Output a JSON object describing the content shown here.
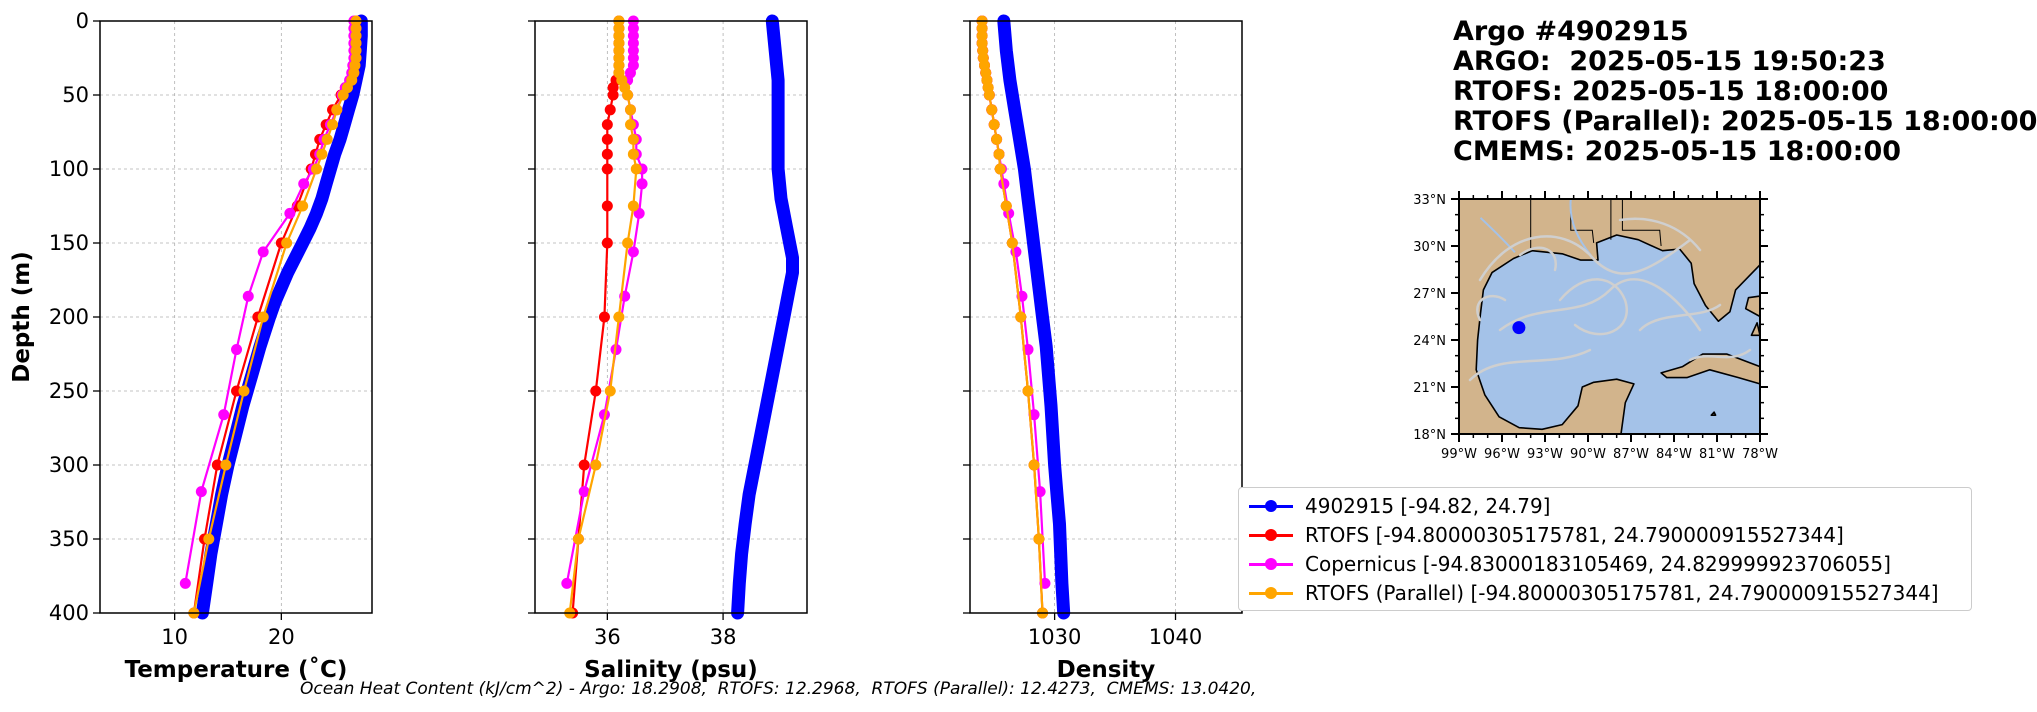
{
  "header": {
    "line1": "Argo #4902915",
    "line2": "ARGO:  2025-05-15 19:50:23",
    "line3": "RTOFS: 2025-05-15 18:00:00",
    "line4": "RTOFS (Parallel): 2025-05-15 18:00:00",
    "line5": "CMEMS: 2025-05-15 18:00:00"
  },
  "footnote": "Ocean Heat Content (kJ/cm^2) - Argo: 18.2908,  RTOFS: 12.2968,  RTOFS (Parallel): 12.4273,  CMEMS: 13.0420,",
  "legend": [
    {
      "label": "4902915 [-94.82, 24.79]",
      "color": "#0000ff"
    },
    {
      "label": "RTOFS [-94.80000305175781, 24.790000915527344]",
      "color": "#ff0000"
    },
    {
      "label": "Copernicus [-94.83000183105469, 24.829999923706055]",
      "color": "#ff00ff"
    },
    {
      "label": "RTOFS (Parallel) [-94.80000305175781, 24.790000915527344]",
      "color": "#ffa500"
    }
  ],
  "chart_data": [
    {
      "type": "line",
      "xlabel": "Temperature (˚C)",
      "ylabel": "Depth (m)",
      "xlim": [
        3,
        28.5
      ],
      "ylim": [
        400,
        0
      ],
      "xticks": [
        10,
        20
      ],
      "yticks": [
        0,
        50,
        100,
        150,
        200,
        250,
        300,
        350,
        400
      ],
      "grid": true,
      "series": [
        {
          "name": "4902915",
          "color": "#0000ff",
          "marker": false,
          "y": [
            0,
            10,
            20,
            30,
            40,
            50,
            60,
            70,
            80,
            90,
            100,
            110,
            120,
            130,
            140,
            150,
            160,
            170,
            180,
            190,
            200,
            220,
            240,
            260,
            280,
            300,
            320,
            340,
            360,
            380,
            400
          ],
          "x": [
            27.5,
            27.5,
            27.4,
            27.3,
            27.0,
            26.7,
            26.3,
            25.9,
            25.5,
            25.0,
            24.6,
            24.2,
            23.8,
            23.3,
            22.7,
            22.0,
            21.3,
            20.6,
            20.0,
            19.4,
            18.9,
            18.0,
            17.2,
            16.4,
            15.7,
            15.0,
            14.4,
            13.9,
            13.4,
            13.0,
            12.6
          ]
        },
        {
          "name": "RTOFS",
          "color": "#ff0000",
          "marker": true,
          "y": [
            0,
            5,
            10,
            15,
            20,
            25,
            30,
            35,
            40,
            45,
            50,
            60,
            70,
            80,
            90,
            100,
            125,
            150,
            200,
            250,
            300,
            350,
            400
          ],
          "x": [
            27.0,
            27.0,
            27.0,
            27.0,
            27.0,
            27.0,
            26.9,
            26.8,
            26.5,
            26.0,
            25.6,
            24.8,
            24.2,
            23.6,
            23.2,
            22.8,
            21.5,
            20.0,
            17.8,
            15.8,
            14.0,
            12.8,
            11.8
          ]
        },
        {
          "name": "Copernicus",
          "color": "#ff00ff",
          "marker": true,
          "y": [
            0,
            5,
            10,
            15,
            20,
            25,
            30,
            35,
            40,
            45,
            50,
            60,
            70,
            80,
            90,
            100,
            110,
            130,
            156,
            186,
            222,
            266,
            318,
            380
          ],
          "x": [
            26.8,
            26.8,
            26.8,
            26.8,
            26.8,
            26.8,
            26.7,
            26.6,
            26.4,
            26.0,
            25.7,
            25.2,
            24.6,
            24.0,
            23.6,
            23.0,
            22.1,
            20.8,
            18.3,
            16.9,
            15.8,
            14.6,
            12.5,
            11.0
          ]
        },
        {
          "name": "RTOFS (Parallel)",
          "color": "#ffa500",
          "marker": true,
          "y": [
            0,
            5,
            10,
            15,
            20,
            25,
            30,
            35,
            40,
            45,
            50,
            60,
            70,
            80,
            90,
            100,
            125,
            150,
            200,
            250,
            300,
            350,
            400
          ],
          "x": [
            27.0,
            27.0,
            27.0,
            27.0,
            27.0,
            27.0,
            26.9,
            26.8,
            26.6,
            26.2,
            25.8,
            25.2,
            24.8,
            24.3,
            23.8,
            23.3,
            22.0,
            20.5,
            18.3,
            16.5,
            14.8,
            13.2,
            11.8
          ]
        }
      ]
    },
    {
      "type": "line",
      "xlabel": "Salinity (psu)",
      "ylabel": "",
      "xlim": [
        34.75,
        39.45
      ],
      "ylim": [
        400,
        0
      ],
      "xticks": [
        36,
        38
      ],
      "yticks": [
        0,
        50,
        100,
        150,
        200,
        250,
        300,
        350,
        400
      ],
      "grid": true,
      "series": [
        {
          "name": "4902915",
          "color": "#0000ff",
          "marker": false,
          "y": [
            0,
            20,
            40,
            60,
            80,
            100,
            120,
            140,
            160,
            170,
            180,
            200,
            220,
            240,
            260,
            280,
            300,
            320,
            340,
            360,
            380,
            400
          ],
          "x": [
            38.85,
            38.9,
            38.95,
            38.95,
            38.95,
            38.95,
            39.0,
            39.1,
            39.2,
            39.2,
            39.15,
            39.05,
            38.95,
            38.85,
            38.75,
            38.65,
            38.55,
            38.45,
            38.38,
            38.32,
            38.28,
            38.25
          ]
        },
        {
          "name": "RTOFS",
          "color": "#ff0000",
          "marker": true,
          "y": [
            0,
            5,
            10,
            15,
            20,
            25,
            30,
            35,
            40,
            45,
            50,
            60,
            70,
            80,
            90,
            100,
            125,
            150,
            200,
            250,
            300,
            350,
            400
          ],
          "x": [
            36.2,
            36.2,
            36.2,
            36.2,
            36.2,
            36.2,
            36.2,
            36.2,
            36.15,
            36.1,
            36.1,
            36.05,
            36.0,
            36.0,
            36.0,
            36.0,
            36.0,
            36.0,
            35.95,
            35.8,
            35.6,
            35.5,
            35.4
          ]
        },
        {
          "name": "Copernicus",
          "color": "#ff00ff",
          "marker": true,
          "y": [
            0,
            5,
            10,
            15,
            20,
            25,
            30,
            35,
            40,
            50,
            60,
            70,
            80,
            90,
            100,
            110,
            130,
            156,
            186,
            222,
            266,
            318,
            380
          ],
          "x": [
            36.45,
            36.45,
            36.45,
            36.45,
            36.45,
            36.45,
            36.45,
            36.4,
            36.35,
            36.35,
            36.4,
            36.45,
            36.5,
            36.5,
            36.6,
            36.6,
            36.55,
            36.45,
            36.3,
            36.15,
            35.95,
            35.6,
            35.3
          ]
        },
        {
          "name": "RTOFS (Parallel)",
          "color": "#ffa500",
          "marker": true,
          "y": [
            0,
            5,
            10,
            15,
            20,
            25,
            30,
            35,
            40,
            45,
            50,
            60,
            70,
            80,
            90,
            100,
            125,
            150,
            200,
            250,
            300,
            350,
            400
          ],
          "x": [
            36.2,
            36.2,
            36.2,
            36.2,
            36.2,
            36.2,
            36.2,
            36.2,
            36.25,
            36.3,
            36.35,
            36.4,
            36.4,
            36.45,
            36.45,
            36.5,
            36.45,
            36.35,
            36.2,
            36.05,
            35.8,
            35.5,
            35.35
          ]
        }
      ]
    },
    {
      "type": "line",
      "xlabel": "Density",
      "ylabel": "",
      "xlim": [
        1023,
        1045.5
      ],
      "ylim": [
        400,
        0
      ],
      "xticks": [
        1030,
        1040
      ],
      "yticks": [
        0,
        50,
        100,
        150,
        200,
        250,
        300,
        350,
        400
      ],
      "grid": true,
      "series": [
        {
          "name": "4902915",
          "color": "#0000ff",
          "marker": false,
          "y": [
            0,
            20,
            40,
            60,
            80,
            100,
            120,
            140,
            160,
            180,
            200,
            220,
            240,
            260,
            280,
            300,
            320,
            340,
            360,
            380,
            400
          ],
          "x": [
            1025.8,
            1026.0,
            1026.3,
            1026.7,
            1027.1,
            1027.5,
            1027.8,
            1028.1,
            1028.4,
            1028.7,
            1029.0,
            1029.3,
            1029.5,
            1029.7,
            1029.85,
            1030.0,
            1030.2,
            1030.4,
            1030.5,
            1030.6,
            1030.75
          ]
        },
        {
          "name": "RTOFS",
          "color": "#ff0000",
          "marker": true,
          "y": [
            0,
            5,
            10,
            15,
            20,
            25,
            30,
            35,
            40,
            45,
            50,
            60,
            70,
            80,
            90,
            100,
            125,
            150,
            200,
            250,
            300,
            350,
            400
          ],
          "x": [
            1024.0,
            1024.0,
            1024.0,
            1024.0,
            1024.05,
            1024.1,
            1024.2,
            1024.3,
            1024.4,
            1024.5,
            1024.6,
            1024.8,
            1025.0,
            1025.2,
            1025.4,
            1025.5,
            1026.0,
            1026.5,
            1027.2,
            1027.8,
            1028.3,
            1028.7,
            1029.0
          ]
        },
        {
          "name": "Copernicus",
          "color": "#ff00ff",
          "marker": true,
          "y": [
            0,
            5,
            10,
            15,
            20,
            25,
            30,
            35,
            40,
            50,
            60,
            70,
            80,
            90,
            100,
            110,
            130,
            156,
            186,
            222,
            266,
            318,
            380
          ],
          "x": [
            1024.0,
            1024.0,
            1024.0,
            1024.0,
            1024.05,
            1024.1,
            1024.2,
            1024.3,
            1024.4,
            1024.6,
            1024.8,
            1025.0,
            1025.2,
            1025.4,
            1025.6,
            1025.8,
            1026.2,
            1026.8,
            1027.3,
            1027.8,
            1028.3,
            1028.8,
            1029.2
          ]
        },
        {
          "name": "RTOFS (Parallel)",
          "color": "#ffa500",
          "marker": true,
          "y": [
            0,
            5,
            10,
            15,
            20,
            25,
            30,
            35,
            40,
            45,
            50,
            60,
            70,
            80,
            90,
            100,
            125,
            150,
            200,
            250,
            300,
            350,
            400
          ],
          "x": [
            1024.0,
            1024.0,
            1024.0,
            1024.0,
            1024.05,
            1024.1,
            1024.2,
            1024.3,
            1024.4,
            1024.5,
            1024.6,
            1024.8,
            1025.0,
            1025.2,
            1025.4,
            1025.5,
            1026.0,
            1026.5,
            1027.2,
            1027.8,
            1028.3,
            1028.7,
            1029.0
          ]
        }
      ]
    }
  ],
  "map": {
    "lat_ticks": [
      "33°N",
      "30°N",
      "27°N",
      "24°N",
      "21°N",
      "18°N"
    ],
    "lon_ticks": [
      "99°W",
      "96°W",
      "93°W",
      "90°W",
      "87°W",
      "84°W",
      "81°W",
      "78°W"
    ],
    "marker_lon": -94.82,
    "marker_lat": 24.79,
    "land_color": "#d2b48c",
    "ocean_color": "#a4c2e8",
    "current_color": "#cfcfcf",
    "marker_color": "#0000ff"
  }
}
